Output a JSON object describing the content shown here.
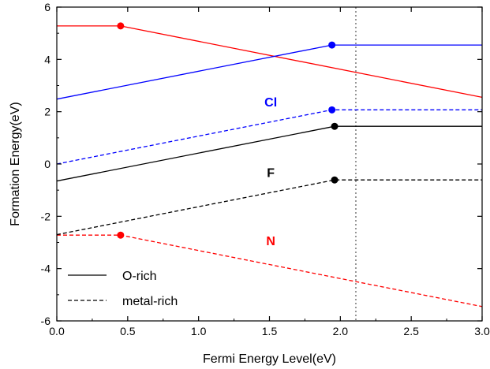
{
  "chart_data": {
    "type": "line",
    "xlabel": "Fermi Energy Level(eV)",
    "ylabel": "Formation Energy(eV)",
    "xlim": [
      0.0,
      3.2
    ],
    "ylim": [
      -6,
      6
    ],
    "x_ticks": [
      "0.0",
      "0.5",
      "1.0",
      "1.5",
      "2.0",
      "2.5",
      "3.0"
    ],
    "y_ticks": [
      "-6",
      "-4",
      "-2",
      "0",
      "2",
      "4",
      "6"
    ],
    "grid": false,
    "vline": {
      "x": 2.25,
      "style": "dotted",
      "color": "#555555"
    },
    "legend": {
      "placement": "bottom-left",
      "entries": [
        {
          "label": "O-rich",
          "style": "solid"
        },
        {
          "label": "metal-rich",
          "style": "dashed"
        }
      ]
    },
    "series": [
      {
        "label": "N",
        "condition": "O-rich",
        "color": "#ff0000",
        "dash": "solid",
        "points": [
          [
            0.0,
            5.28
          ],
          [
            0.48,
            5.28
          ],
          [
            3.2,
            2.55
          ]
        ],
        "markers": [
          [
            0.48,
            5.28
          ]
        ]
      },
      {
        "label": "N",
        "condition": "metal-rich",
        "color": "#ff0000",
        "dash": "dashed",
        "points": [
          [
            0.0,
            -2.72
          ],
          [
            0.48,
            -2.72
          ],
          [
            3.2,
            -5.45
          ]
        ],
        "markers": [
          [
            0.48,
            -2.72
          ]
        ]
      },
      {
        "label": "Cl",
        "condition": "O-rich",
        "color": "#0000ff",
        "dash": "solid",
        "points": [
          [
            0.0,
            2.48
          ],
          [
            2.07,
            4.55
          ],
          [
            3.2,
            4.55
          ]
        ],
        "markers": [
          [
            2.07,
            4.55
          ]
        ]
      },
      {
        "label": "Cl",
        "condition": "metal-rich",
        "color": "#0000ff",
        "dash": "dashed",
        "points": [
          [
            0.0,
            0.0
          ],
          [
            2.07,
            2.07
          ],
          [
            3.2,
            2.07
          ]
        ],
        "markers": [
          [
            2.07,
            2.07
          ]
        ]
      },
      {
        "label": "F",
        "condition": "O-rich",
        "color": "#000000",
        "dash": "solid",
        "points": [
          [
            0.0,
            -0.65
          ],
          [
            2.09,
            1.44
          ],
          [
            3.2,
            1.44
          ]
        ],
        "markers": [
          [
            2.09,
            1.44
          ]
        ]
      },
      {
        "label": "F",
        "condition": "metal-rich",
        "color": "#000000",
        "dash": "dashed",
        "points": [
          [
            0.0,
            -2.7
          ],
          [
            2.09,
            -0.61
          ],
          [
            3.2,
            -0.61
          ]
        ],
        "markers": [
          [
            2.09,
            -0.61
          ]
        ]
      }
    ],
    "annotations": [
      {
        "text": "Cl",
        "x": 1.61,
        "y": 2.2,
        "color": "#0000ff"
      },
      {
        "text": "F",
        "x": 1.61,
        "y": -0.5,
        "color": "#000000"
      },
      {
        "text": "N",
        "x": 1.61,
        "y": -3.1,
        "color": "#ff0000"
      }
    ]
  }
}
